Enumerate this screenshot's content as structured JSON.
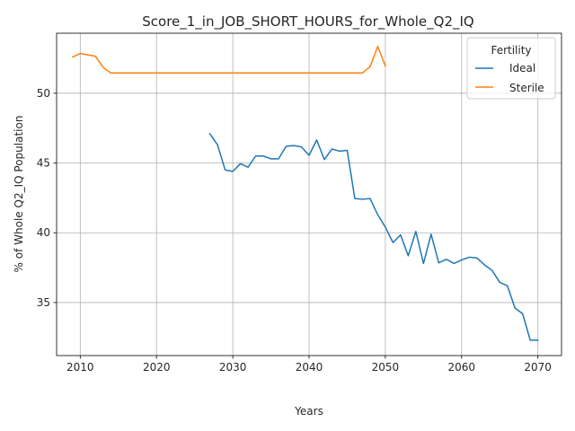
{
  "chart_data": {
    "type": "line",
    "title": "Score_1_in_JOB_SHORT_HOURS_for_Whole_Q2_IQ",
    "xlabel": "Years",
    "ylabel": "% of Whole Q2_IQ Population",
    "xlim": [
      2006.9,
      2073.1
    ],
    "ylim": [
      31.2,
      54.3
    ],
    "xticks": [
      2010,
      2020,
      2030,
      2040,
      2050,
      2060,
      2070
    ],
    "yticks": [
      35,
      40,
      45,
      50
    ],
    "grid": true,
    "legend": {
      "title": "Fertility",
      "placement": "top-right"
    },
    "series": [
      {
        "name": "Ideal",
        "color": "#1f77b4",
        "x": [
          2027,
          2028,
          2029,
          2030,
          2031,
          2032,
          2033,
          2034,
          2035,
          2036,
          2037,
          2038,
          2039,
          2040,
          2041,
          2042,
          2043,
          2044,
          2045,
          2046,
          2047,
          2048,
          2049,
          2050,
          2051,
          2052,
          2053,
          2054,
          2055,
          2056,
          2057,
          2058,
          2059,
          2060,
          2061,
          2062,
          2063,
          2064,
          2065,
          2066,
          2067,
          2068,
          2069,
          2070
        ],
        "y": [
          47.1,
          46.3,
          44.5,
          44.4,
          44.95,
          44.7,
          45.5,
          45.5,
          45.3,
          45.3,
          46.2,
          46.25,
          46.15,
          45.55,
          46.65,
          45.25,
          46.0,
          45.85,
          45.9,
          42.45,
          42.4,
          42.45,
          41.3,
          40.4,
          39.3,
          39.85,
          38.35,
          40.1,
          37.8,
          39.9,
          37.85,
          38.1,
          37.8,
          38.05,
          38.25,
          38.2,
          37.7,
          37.3,
          36.45,
          36.2,
          34.6,
          34.2,
          32.3,
          32.3
        ]
      },
      {
        "name": "Sterile",
        "color": "#ff7f0e",
        "x": [
          2009,
          2010,
          2011,
          2012,
          2013,
          2014,
          2015,
          2016,
          2017,
          2018,
          2019,
          2020,
          2021,
          2022,
          2023,
          2024,
          2025,
          2026,
          2027,
          2028,
          2029,
          2030,
          2031,
          2032,
          2033,
          2034,
          2035,
          2036,
          2037,
          2038,
          2039,
          2040,
          2041,
          2042,
          2043,
          2044,
          2045,
          2046,
          2047,
          2048,
          2049,
          2050
        ],
        "y": [
          52.6,
          52.85,
          52.75,
          52.65,
          51.85,
          51.45,
          51.45,
          51.45,
          51.45,
          51.45,
          51.45,
          51.45,
          51.45,
          51.45,
          51.45,
          51.45,
          51.45,
          51.45,
          51.45,
          51.45,
          51.45,
          51.45,
          51.45,
          51.45,
          51.45,
          51.45,
          51.45,
          51.45,
          51.45,
          51.45,
          51.45,
          51.45,
          51.45,
          51.45,
          51.45,
          51.45,
          51.45,
          51.45,
          51.45,
          51.9,
          53.35,
          51.95
        ]
      }
    ]
  }
}
